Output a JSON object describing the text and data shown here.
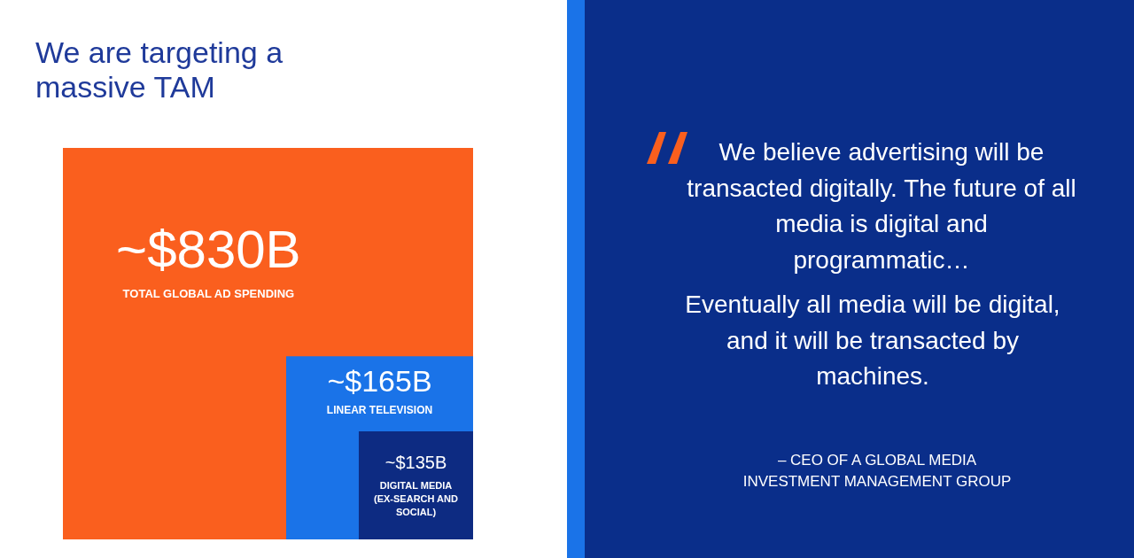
{
  "chart_data": {
    "type": "other",
    "title": "We are targeting a massive TAM",
    "categories": [
      "TOTAL GLOBAL AD SPENDING",
      "LINEAR TELEVISION",
      "DIGITAL MEDIA (EX-SEARCH AND SOCIAL)"
    ],
    "values": [
      830,
      165,
      135
    ],
    "value_labels": [
      "~$830B",
      "~$165B",
      "~$135B"
    ],
    "colors": [
      "#fa5f1e",
      "#1a73e8",
      "#0d2b82"
    ],
    "annotations": [
      "We believe advertising will be transacted digitally. The future of all media is digital and programmatic…",
      "Eventually all media will be digital, and it will be transacted by machines.",
      "– CEO OF A GLOBAL MEDIA INVESTMENT MANAGEMENT GROUP"
    ]
  }
}
